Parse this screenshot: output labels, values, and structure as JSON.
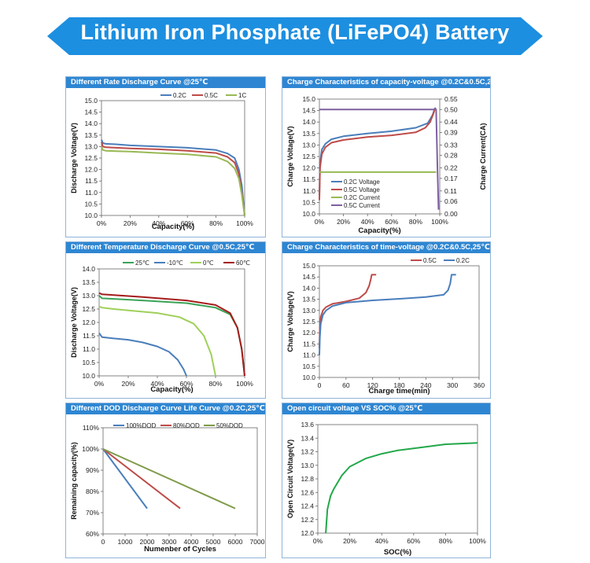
{
  "page": {
    "title": "Lithium Iron Phosphate (LiFePO4) Battery"
  },
  "chart_data": [
    {
      "id": "p1",
      "type": "line",
      "title": "Different Rate Discharge Curve @25℃",
      "xlabel": "Capacity(%)",
      "ylabel": "Discharge Voltage(V)",
      "xlim": [
        0,
        100
      ],
      "ylim": [
        10.0,
        15.0
      ],
      "xticks": [
        0,
        20,
        40,
        60,
        80,
        100
      ],
      "xtick_labels": [
        "0%",
        "20%",
        "40%",
        "60%",
        "80%",
        "100%"
      ],
      "yticks": [
        10.0,
        10.5,
        11.0,
        11.5,
        12.0,
        12.5,
        13.0,
        13.5,
        14.0,
        14.5,
        15.0
      ],
      "ytick_labels": [
        "10.0",
        "10.5",
        "11.0",
        "11.5",
        "12.0",
        "12.5",
        "13.0",
        "13.5",
        "14.0",
        "14.5",
        "15.0"
      ],
      "legend": "top",
      "series": [
        {
          "name": "0.2C",
          "color": "#4a7ebb",
          "x": [
            0,
            1,
            3,
            10,
            20,
            40,
            60,
            80,
            88,
            93,
            96,
            98,
            100
          ],
          "y": [
            13.3,
            13.15,
            13.12,
            13.1,
            13.05,
            13.0,
            12.95,
            12.85,
            12.7,
            12.5,
            12.0,
            11.3,
            10.0
          ]
        },
        {
          "name": "0.5C",
          "color": "#be4b48",
          "x": [
            0,
            1,
            3,
            10,
            20,
            40,
            60,
            80,
            88,
            93,
            96,
            98,
            100
          ],
          "y": [
            13.2,
            13.0,
            12.97,
            12.95,
            12.92,
            12.88,
            12.82,
            12.72,
            12.55,
            12.3,
            11.8,
            11.0,
            10.0
          ]
        },
        {
          "name": "1C",
          "color": "#98b954",
          "x": [
            0,
            1,
            3,
            10,
            20,
            40,
            60,
            80,
            88,
            93,
            96,
            98,
            100
          ],
          "y": [
            13.0,
            12.85,
            12.82,
            12.8,
            12.78,
            12.72,
            12.66,
            12.55,
            12.35,
            12.05,
            11.6,
            10.9,
            10.0
          ]
        }
      ]
    },
    {
      "id": "p2",
      "type": "line",
      "title": "Charge Characteristics of capacity-voltage @0.2C&0.5C,25℃",
      "xlabel": "Capacity(%)",
      "ylabel": "Charge Voltage(V)",
      "y2label": "Charge Current(CA)",
      "xlim": [
        0,
        100
      ],
      "ylim": [
        10.0,
        15.0
      ],
      "y2lim": [
        0.0,
        0.55
      ],
      "xticks": [
        0,
        20,
        40,
        60,
        80,
        100
      ],
      "xtick_labels": [
        "0%",
        "20%",
        "40%",
        "60%",
        "80%",
        "100%"
      ],
      "yticks": [
        10.0,
        10.5,
        11.0,
        11.5,
        12.0,
        12.5,
        13.0,
        13.5,
        14.0,
        14.5,
        15.0
      ],
      "ytick_labels": [
        "10.0",
        "10.5",
        "11.0",
        "11.5",
        "12.0",
        "12.5",
        "13.0",
        "13.5",
        "14.0",
        "14.5",
        "15.0"
      ],
      "y2ticks": [
        0.0,
        0.06,
        0.11,
        0.17,
        0.22,
        0.28,
        0.33,
        0.39,
        0.44,
        0.5,
        0.55
      ],
      "y2tick_labels": [
        "0.00",
        "0.06",
        "0.11",
        "0.17",
        "0.22",
        "0.28",
        "0.33",
        "0.39",
        "0.44",
        "0.50",
        "0.55"
      ],
      "legend": "inside-left",
      "series": [
        {
          "name": "0.2C Voltage",
          "color": "#4a7ebb",
          "axis": "y",
          "x": [
            0,
            0.5,
            2,
            5,
            10,
            20,
            40,
            60,
            80,
            90,
            94,
            96,
            97
          ],
          "y": [
            10.8,
            12.2,
            12.8,
            13.05,
            13.25,
            13.38,
            13.5,
            13.6,
            13.75,
            13.95,
            14.3,
            14.6,
            14.6
          ]
        },
        {
          "name": "0.5C Voltage",
          "color": "#be4b48",
          "axis": "y",
          "x": [
            0,
            0.5,
            2,
            5,
            10,
            20,
            40,
            60,
            80,
            88,
            92,
            95,
            96
          ],
          "y": [
            10.6,
            12.0,
            12.6,
            12.9,
            13.1,
            13.22,
            13.35,
            13.42,
            13.55,
            13.75,
            14.0,
            14.4,
            14.6
          ]
        },
        {
          "name": "0.2C Current",
          "color": "#98b954",
          "axis": "y2",
          "x": [
            0,
            97
          ],
          "y": [
            0.2,
            0.2
          ]
        },
        {
          "name": "0.5C Current",
          "color": "#7d60a0",
          "axis": "y2",
          "x": [
            0,
            96,
            97,
            98,
            99
          ],
          "y": [
            0.5,
            0.5,
            0.5,
            0.25,
            0.02
          ]
        }
      ]
    },
    {
      "id": "p3",
      "type": "line",
      "title": "Different Temperature Discharge Curve @0.5C,25℃",
      "xlabel": "Capacity(%)",
      "ylabel": "Discharge Voltage(V)",
      "xlim": [
        0,
        100
      ],
      "ylim": [
        10.0,
        14.0
      ],
      "xticks": [
        0,
        20,
        40,
        60,
        80,
        100
      ],
      "xtick_labels": [
        "0%",
        "20%",
        "40%",
        "60%",
        "80%",
        "100%"
      ],
      "yticks": [
        10.0,
        10.5,
        11.0,
        11.5,
        12.0,
        12.5,
        13.0,
        13.5,
        14.0
      ],
      "ytick_labels": [
        "10.0",
        "10.5",
        "11.0",
        "11.5",
        "12.0",
        "12.5",
        "13.0",
        "13.5",
        "14.0"
      ],
      "legend": "top",
      "series": [
        {
          "name": "25℃",
          "color": "#3aa356",
          "x": [
            0,
            2,
            10,
            30,
            60,
            80,
            90,
            95,
            98,
            100
          ],
          "y": [
            13.0,
            12.9,
            12.88,
            12.82,
            12.72,
            12.55,
            12.3,
            11.8,
            11.0,
            10.0
          ]
        },
        {
          "name": "-10℃",
          "color": "#4a7ebb",
          "x": [
            0,
            2,
            10,
            20,
            30,
            40,
            48,
            54,
            58,
            60
          ],
          "y": [
            11.6,
            11.45,
            11.4,
            11.35,
            11.25,
            11.1,
            10.9,
            10.6,
            10.25,
            10.0
          ]
        },
        {
          "name": "0℃",
          "color": "#9fd05a",
          "x": [
            0,
            2,
            10,
            20,
            40,
            55,
            65,
            72,
            77,
            80
          ],
          "y": [
            12.6,
            12.55,
            12.5,
            12.45,
            12.35,
            12.2,
            11.95,
            11.5,
            10.8,
            10.0
          ]
        },
        {
          "name": "60℃",
          "color": "#a51b1b",
          "x": [
            0,
            2,
            10,
            30,
            60,
            80,
            90,
            95,
            98,
            100
          ],
          "y": [
            13.1,
            13.05,
            13.02,
            12.95,
            12.82,
            12.65,
            12.35,
            11.8,
            11.0,
            10.0
          ]
        }
      ]
    },
    {
      "id": "p4",
      "type": "line",
      "title": "Charge Characteristics of time-voltage @0.2C&0.5C,25℃",
      "xlabel": "Charge time(min)",
      "ylabel": "Charge Voltage(V)",
      "xlim": [
        0,
        360
      ],
      "ylim": [
        10.0,
        15.0
      ],
      "xticks": [
        0,
        60,
        120,
        180,
        240,
        300,
        360
      ],
      "xtick_labels": [
        "0",
        "60",
        "120",
        "180",
        "240",
        "300",
        "360"
      ],
      "yticks": [
        10.0,
        10.5,
        11.0,
        11.5,
        12.0,
        12.5,
        13.0,
        13.5,
        14.0,
        14.5,
        15.0
      ],
      "ytick_labels": [
        "10.0",
        "10.5",
        "11.0",
        "11.5",
        "12.0",
        "12.5",
        "13.0",
        "13.5",
        "14.0",
        "14.5",
        "15.0"
      ],
      "legend": "top-right",
      "series": [
        {
          "name": "0.5C",
          "color": "#be4b48",
          "x": [
            0,
            1,
            3,
            8,
            15,
            30,
            60,
            90,
            105,
            112,
            116,
            118,
            128
          ],
          "y": [
            11.3,
            12.2,
            12.7,
            13.0,
            13.15,
            13.3,
            13.4,
            13.55,
            13.8,
            14.1,
            14.4,
            14.6,
            14.6
          ]
        },
        {
          "name": "0.2C",
          "color": "#4a7ebb",
          "x": [
            0,
            1,
            3,
            8,
            15,
            30,
            60,
            120,
            180,
            240,
            280,
            290,
            295,
            298,
            308
          ],
          "y": [
            11.0,
            11.8,
            12.4,
            12.8,
            13.0,
            13.2,
            13.35,
            13.45,
            13.52,
            13.6,
            13.7,
            13.9,
            14.2,
            14.6,
            14.6
          ]
        }
      ]
    },
    {
      "id": "p5",
      "type": "line",
      "title": "Different DOD Discharge Curve Life Curve @0.2C,25℃",
      "xlabel": "Numenber of Cycles",
      "ylabel": "Remaining capacity(%)",
      "xlim": [
        0,
        7000
      ],
      "ylim": [
        60,
        110
      ],
      "xticks": [
        0,
        1000,
        2000,
        3000,
        4000,
        5000,
        6000,
        7000
      ],
      "xtick_labels": [
        "0",
        "1000",
        "2000",
        "3000",
        "4000",
        "5000",
        "6000",
        "7000"
      ],
      "yticks": [
        60,
        70,
        80,
        90,
        100,
        110
      ],
      "ytick_labels": [
        "60%",
        "70%",
        "80%",
        "90%",
        "100%",
        "110%"
      ],
      "legend": "top",
      "series": [
        {
          "name": "100%DOD",
          "color": "#4a7ebb",
          "x": [
            0,
            2000
          ],
          "y": [
            100,
            72
          ]
        },
        {
          "name": "80%DOD",
          "color": "#be4b48",
          "x": [
            0,
            3500
          ],
          "y": [
            100,
            72
          ]
        },
        {
          "name": "50%DOD",
          "color": "#7f9a48",
          "x": [
            0,
            6000
          ],
          "y": [
            100,
            72
          ]
        }
      ]
    },
    {
      "id": "p6",
      "type": "line",
      "title": "Open circuit voltage VS SOC% @25℃",
      "xlabel": "SOC(%)",
      "ylabel": "Open Circuit Voltage(V)",
      "xlim": [
        0,
        100
      ],
      "ylim": [
        12.0,
        13.6
      ],
      "xticks": [
        0,
        20,
        40,
        60,
        80,
        100
      ],
      "xtick_labels": [
        "0%",
        "20%",
        "40%",
        "60%",
        "80%",
        "100%"
      ],
      "yticks": [
        12.0,
        12.2,
        12.4,
        12.6,
        12.8,
        13.0,
        13.2,
        13.4,
        13.6
      ],
      "ytick_labels": [
        "12.0",
        "12.2",
        "12.4",
        "12.6",
        "12.8",
        "13.0",
        "13.2",
        "13.4",
        "13.6"
      ],
      "legend": "none",
      "series": [
        {
          "name": "OCV",
          "color": "#22a84a",
          "x": [
            5,
            6,
            8,
            10,
            15,
            20,
            30,
            40,
            50,
            60,
            70,
            80,
            90,
            100
          ],
          "y": [
            12.0,
            12.35,
            12.55,
            12.65,
            12.85,
            12.98,
            13.1,
            13.17,
            13.22,
            13.25,
            13.28,
            13.31,
            13.32,
            13.33
          ]
        }
      ]
    }
  ]
}
